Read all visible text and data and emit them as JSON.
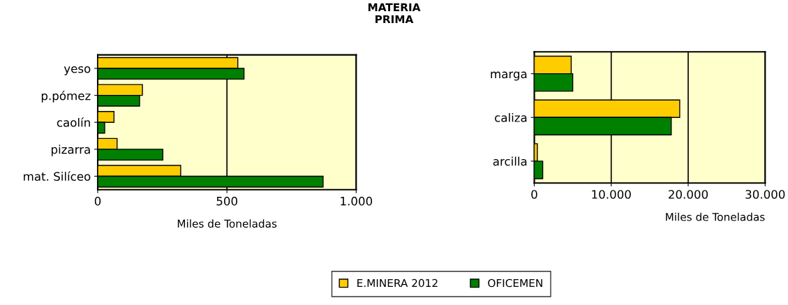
{
  "chart_data": [
    {
      "type": "bar",
      "orientation": "horizontal",
      "title": "MATERIA\nPRIMA",
      "xlabel": "Miles de Toneladas",
      "categories": [
        "yeso",
        "p.pómez",
        "caolín",
        "pizarra",
        "mat. Silíceo"
      ],
      "series": [
        {
          "name": "E.MINERA 2012",
          "color": "#ffcc00",
          "values": [
            542,
            173,
            63,
            75,
            321
          ]
        },
        {
          "name": "OFICEMEN",
          "color": "#008000",
          "values": [
            566,
            162,
            27,
            252,
            872
          ]
        }
      ],
      "xlim": [
        0,
        1000
      ],
      "xticks": [
        0,
        500,
        {
          "value": 1000,
          "label": "1.000"
        }
      ],
      "grid": "x",
      "legend": "bottom"
    },
    {
      "type": "bar",
      "orientation": "horizontal",
      "xlabel": "Miles de Toneladas",
      "categories": [
        "marga",
        "caliza",
        "arcilla"
      ],
      "series": [
        {
          "color": "#ffcc00",
          "values": [
            4800,
            18900,
            400
          ]
        },
        {
          "color": "#008000",
          "values": [
            5000,
            17800,
            1100
          ]
        }
      ],
      "xlim": [
        0,
        30000
      ],
      "xticks": [
        0,
        {
          "value": 10000,
          "label": "10.000"
        },
        {
          "value": 20000,
          "label": "20.000"
        },
        {
          "value": 30000,
          "label": "30.000"
        }
      ],
      "grid": "x"
    }
  ]
}
